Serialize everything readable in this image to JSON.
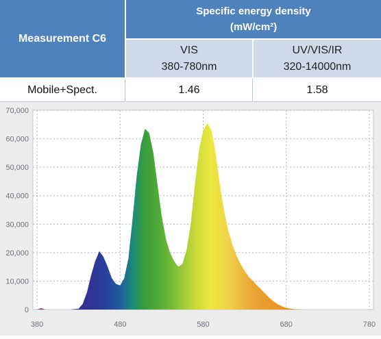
{
  "table": {
    "row_header": "Measurement C6",
    "group_header_line1": "Specific energy density",
    "group_header_line2": "(mW/cm²)",
    "columns": [
      {
        "name": "VIS",
        "range": "380-780nm"
      },
      {
        "name": "UV/VIS/IR",
        "range": "320-14000nm"
      }
    ],
    "rows": [
      {
        "label": "Mobile+Spect.",
        "values": [
          "1.46",
          "1.58"
        ]
      }
    ]
  },
  "chart_data": {
    "type": "area",
    "title": "",
    "xlabel": "",
    "ylabel": "",
    "xlim": [
      375,
      785
    ],
    "ylim": [
      0,
      70000
    ],
    "x_ticks": [
      380,
      480,
      580,
      680,
      780
    ],
    "y_ticks": [
      0,
      10000,
      20000,
      30000,
      40000,
      50000,
      60000,
      70000
    ],
    "x_tick_labels": [
      "380",
      "480",
      "580",
      "680",
      "780"
    ],
    "y_tick_labels": [
      "0",
      "10,000",
      "20,000",
      "30,000",
      "40,000",
      "50,000",
      "60,000",
      "70,000"
    ],
    "grid": true,
    "fill": "spectral wavelength colors",
    "series": [
      {
        "x": [
          380,
          385,
          390,
          420,
          430,
          435,
          440,
          445,
          450,
          455,
          460,
          465,
          470,
          475,
          480,
          485,
          490,
          495,
          500,
          505,
          510,
          515,
          520,
          525,
          530,
          535,
          540,
          545,
          550,
          555,
          560,
          565,
          570,
          575,
          580,
          585,
          590,
          595,
          600,
          605,
          610,
          615,
          620,
          625,
          630,
          635,
          640,
          645,
          650,
          655,
          660,
          665,
          670,
          675,
          680,
          685,
          690,
          695,
          700,
          705,
          710,
          715,
          720
        ],
        "y": [
          0,
          500,
          0,
          0,
          300,
          2000,
          6000,
          12000,
          17000,
          20500,
          18500,
          15000,
          11000,
          9000,
          8500,
          11000,
          18000,
          32000,
          47000,
          58000,
          63500,
          62000,
          55000,
          44000,
          33000,
          25000,
          20000,
          17000,
          15000,
          16000,
          21000,
          30000,
          44000,
          56000,
          63000,
          65500,
          63000,
          55000,
          44000,
          35000,
          28000,
          23000,
          19000,
          16000,
          13500,
          11500,
          10000,
          8500,
          7000,
          5500,
          4000,
          2800,
          1800,
          1100,
          600,
          300,
          150,
          50,
          0,
          0,
          0,
          0,
          0
        ]
      }
    ]
  }
}
